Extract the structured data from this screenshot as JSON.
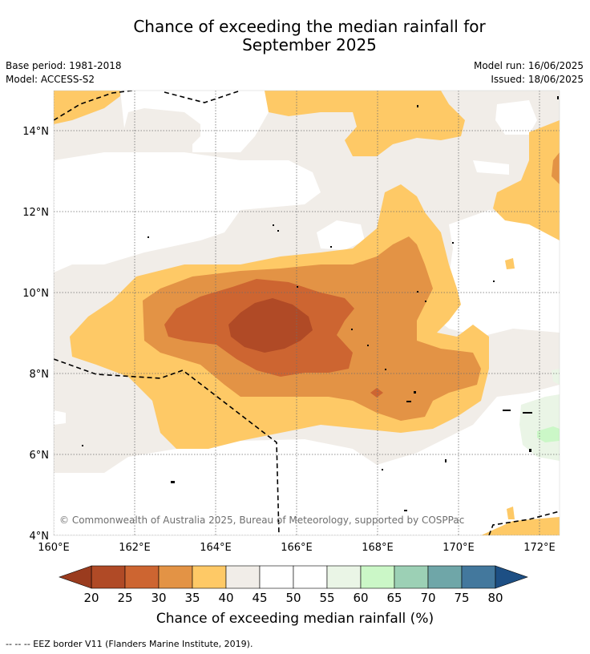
{
  "title": {
    "line1": "Chance of exceeding the median rainfall for",
    "line2": "September 2025"
  },
  "meta": {
    "base_period": "Base period: 1981-2018",
    "model": "Model: ACCESS-S2",
    "model_run": "Model run: 16/06/2025",
    "issued": "Issued: 18/06/2025"
  },
  "map": {
    "lon_ticks": [
      "160°E",
      "162°E",
      "164°E",
      "166°E",
      "168°E",
      "170°E",
      "172°E"
    ],
    "lat_ticks": [
      "14°N",
      "12°N",
      "10°N",
      "8°N",
      "6°N",
      "4°N"
    ],
    "lon_range": [
      160,
      172.5
    ],
    "lat_range": [
      4,
      15
    ],
    "copyright": "© Commonwealth of Australia 2025, Bureau of Meteorology, supported by COSPPac"
  },
  "colorbar": {
    "ticks": [
      "20",
      "25",
      "30",
      "35",
      "40",
      "45",
      "50",
      "55",
      "60",
      "65",
      "70",
      "75",
      "80"
    ],
    "colors": [
      "#b04a26",
      "#cd6531",
      "#e39345",
      "#fec966",
      "#f1ede8",
      "#ffffff",
      "#ffffff",
      "#eaf5e6",
      "#cbf7c7",
      "#9cd0b5",
      "#6fa6a8",
      "#43789d"
    ],
    "under_color": "#9a3b1e",
    "over_color": "#1d4f84",
    "title": "Chance of exceeding median rainfall (%)"
  },
  "legend": {
    "eez": "--  --  -- EEZ border V11 (Flanders Marine Institute, 2019)."
  }
}
